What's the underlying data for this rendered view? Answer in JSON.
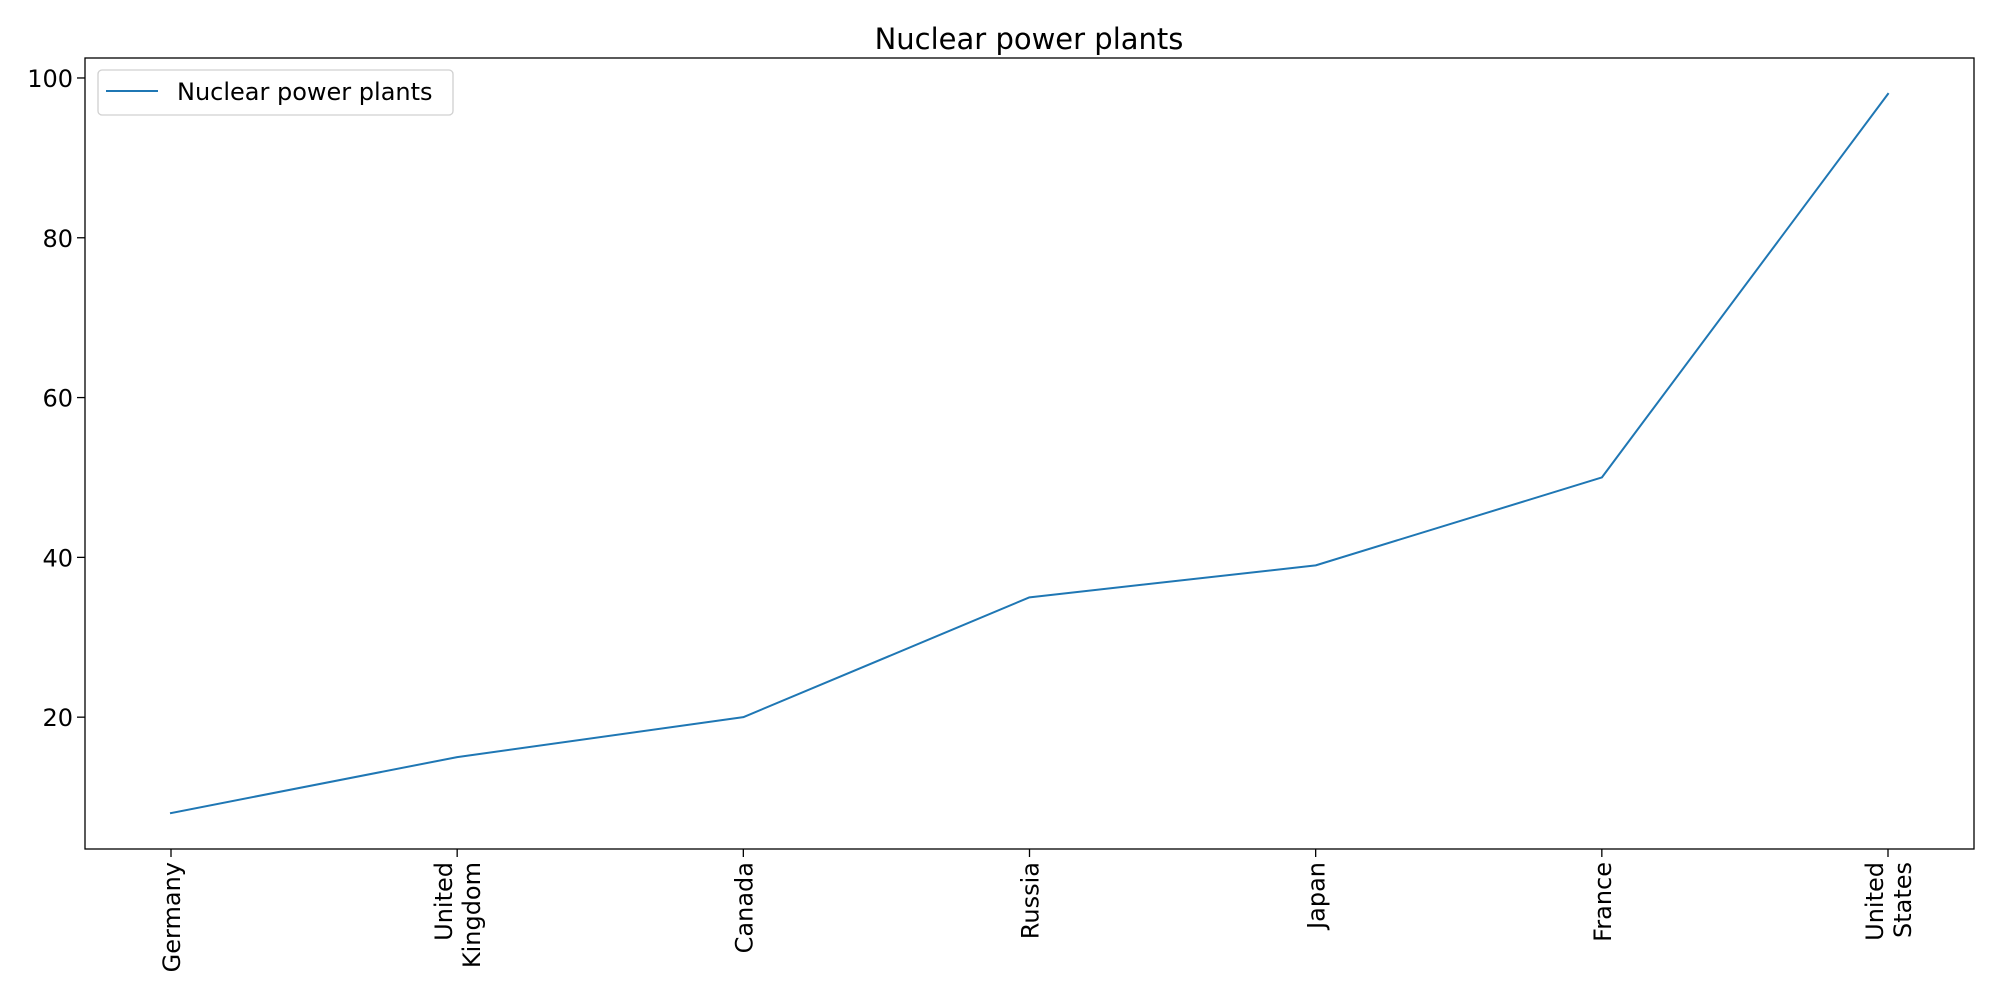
{
  "chart_data": {
    "type": "line",
    "title": "Nuclear power plants",
    "xlabel": "",
    "ylabel": "",
    "categories": [
      [
        "Germany"
      ],
      [
        "United",
        "Kingdom"
      ],
      [
        "Canada"
      ],
      [
        "Russia"
      ],
      [
        "Japan"
      ],
      [
        "France"
      ],
      [
        "United",
        "States"
      ]
    ],
    "series": [
      {
        "name": "Nuclear power plants",
        "color": "#1f77b4",
        "values": [
          8,
          15,
          20,
          35,
          39,
          50,
          98
        ]
      }
    ],
    "ylim": [
      3.5,
      102.5
    ],
    "yticks": [
      "20",
      "40",
      "60",
      "80",
      "100"
    ],
    "grid": false,
    "legend": "top-left"
  }
}
